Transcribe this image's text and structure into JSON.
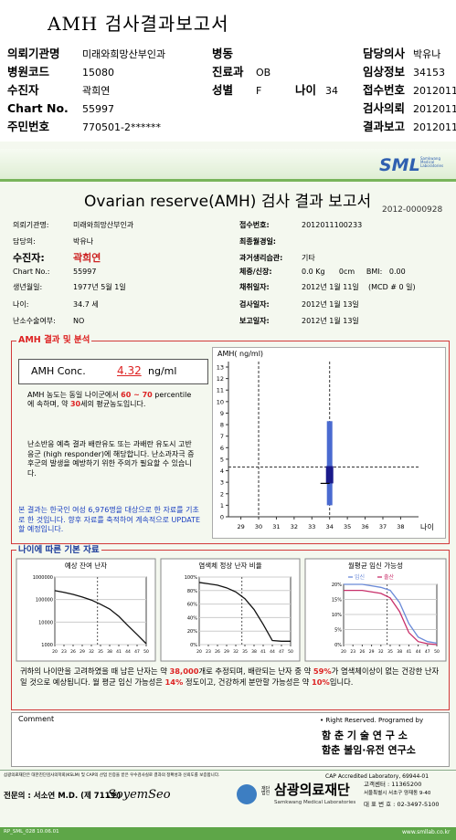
{
  "header": {
    "title": "AMH 검사결과보고서",
    "fields": [
      {
        "label": "의뢰기관명",
        "value": "미래와희망산부인과"
      },
      {
        "label": "병동"
      },
      {
        "label": "담당의사",
        "value": "박유나"
      },
      {
        "label": "병원코드",
        "value": 15080
      },
      {
        "label": "진료과",
        "value": "OB"
      },
      {
        "label": "임상정보",
        "value": 34153
      },
      {
        "label": "수진자",
        "value": "곽희연"
      },
      {
        "label": "성별",
        "value": "F"
      },
      {
        "label": "나이",
        "value": 34
      },
      {
        "label": "접수번호",
        "value": "2012011"
      },
      {
        "label": "Chart No.",
        "value": 55997
      },
      {
        "label": "검사의뢰",
        "value": "2012011"
      },
      {
        "label": "주민번호",
        "value": "770501-2******"
      },
      {
        "label": "결과보고",
        "value": "2012011"
      }
    ]
  },
  "report": {
    "logo": "SML",
    "logo_sub": "Samkwang Medical Laboratories",
    "title": "Ovarian reserve(AMH) 검사 결과 보고서",
    "number": "2012-0000928",
    "info_left": [
      {
        "label": "의뢰기관명:",
        "value": "미래와희망산부인과"
      },
      {
        "label": "담당의:",
        "value": "박유나"
      },
      {
        "label": "수진자:",
        "value": "곽희연"
      },
      {
        "label": "Chart No.:",
        "value": 55997
      },
      {
        "label": "생년월일:",
        "value": "1977년 5월 1일"
      },
      {
        "label": "나이:",
        "value": "34.7 세"
      },
      {
        "label": "난소수술여부:",
        "value": "NO"
      }
    ],
    "info_right": [
      {
        "label": "접수번호:",
        "value": "2012011100233"
      },
      {
        "label": "최종월경일:"
      },
      {
        "label": "과거생리습관:",
        "value": "기타"
      },
      {
        "label": "체중/신장:",
        "value": "0.0 Kg      0cm     BMI:   0.00"
      },
      {
        "label": "채취일자:",
        "value": "2012년 1월 11일    (MCD # 0 일)"
      },
      {
        "label": "검사일자:",
        "value": "2012년 1월 13일"
      },
      {
        "label": "보고일자:",
        "value": "2012년 1월 13일"
      }
    ]
  },
  "analysis": {
    "title": "AMH 결과 및 분석",
    "conc_label": "AMH Conc.",
    "conc_value": 4.32,
    "conc_unit": "ng/ml",
    "p1": [
      "AMH 농도는 동일 나이군에서 ",
      "60 ~ 70",
      " percentile에 속하며, 약 ",
      30,
      "세의 평균농도입니다."
    ],
    "p2": "난소반응 예측 결과 배란유도 또는 과배란 유도시 고반응군 (high responder)에 해당합니다. 난소과자극 증후군의 발생을 예방하기 위한 주의가 필요할 수 있습니다.",
    "p3": "본 결과는 한국인 여성 6,976명을 대상으로 한 자료를 기초로 한 것입니다. 향후 자료를 축적하여 계속적으로 UPDATE할 예정입니다."
  },
  "amh_chart": {
    "y_label": "AMH( ng/ml)",
    "x_label": "나이",
    "ylim": [
      0,
      13
    ],
    "yticks": [
      0,
      1,
      2,
      3,
      4,
      5,
      6,
      7,
      8,
      9,
      10,
      11,
      12,
      13
    ],
    "xlim": [
      28.3,
      38.7
    ],
    "xticks": [
      29,
      30,
      31,
      32,
      33,
      34,
      35,
      36,
      37,
      38
    ],
    "range": [
      1.0,
      8.3
    ],
    "box": [
      2.9,
      4.4
    ]
  },
  "basic": {
    "title": "나이에 따른 기본 자료",
    "x": [
      20,
      23,
      26,
      29,
      32,
      35,
      38,
      41,
      44,
      47,
      50
    ],
    "charts": [
      {
        "title": "예상 잔여 난자",
        "log_scale": true,
        "ylim": [
          1000,
          1000000
        ],
        "yticks": [
          1000,
          10000,
          100000,
          1000000
        ],
        "series": [
          {
            "color": "#111111",
            "values": [
              250000,
              210000,
              170000,
              130000,
              95000,
              62000,
              38000,
              18000,
              7000,
              2800,
              1100
            ]
          }
        ]
      },
      {
        "title": "염색체 정상 난자 비율",
        "ylim": [
          0,
          100
        ],
        "yticks": [
          {
            "value": 0,
            "label": "0%"
          },
          {
            "value": 20,
            "label": "20%"
          },
          {
            "value": 40,
            "label": "40%"
          },
          {
            "value": 60,
            "label": "60%"
          },
          {
            "value": 80,
            "label": "80%"
          },
          {
            "value": 100,
            "label": "100%"
          }
        ],
        "series": [
          {
            "color": "#111111",
            "values": [
              92,
              90,
              88,
              84,
              78,
              68,
              52,
              30,
              6,
              5,
              5
            ]
          }
        ]
      },
      {
        "title": "월평균 임신 가능성",
        "ylim": [
          0,
          20
        ],
        "yticks": [
          {
            "value": 0,
            "label": "0%"
          },
          {
            "value": 5,
            "label": "5%"
          },
          {
            "value": 10,
            "label": "10%"
          },
          {
            "value": 15,
            "label": "15%"
          },
          {
            "value": 20,
            "label": "20%"
          }
        ],
        "series": [
          {
            "name": "임신",
            "color": "#6a8ad8",
            "values": [
              20,
              20,
              20,
              19.5,
              19,
              18,
              14,
              7,
              2.5,
              1,
              0.5
            ]
          },
          {
            "name": "출산",
            "color": "#c8306a",
            "values": [
              18,
              18,
              18,
              17.5,
              17,
              15.5,
              11,
              4,
              1,
              0.3,
              0
            ]
          }
        ]
      }
    ],
    "summary": [
      "귀하의 나이만을 고려하였을 때 남은 난자는 약 ",
      "38,000",
      "개로 추정되며, 배란되는 난자 중 약 ",
      "59%",
      "가 염색체이상이 없는 건강한 난자일 것으로 예상됩니다. 월 평균 임신 가능성은 ",
      "14%",
      " 정도이고, 건강하게 분만할 가능성은 약 ",
      "10%",
      "입니다."
    ]
  },
  "comment": {
    "title": "Comment",
    "credit": "• Right Reserved. Programed by",
    "lab1": "함 춘  기 술  연 구 소",
    "lab2": "함춘 불임·유전 연구소"
  },
  "footer": {
    "notice": "삼광의료재단은 대한진단검사의학회(KSLM) 및 CAP의 산업 인증을 받은 우수검사실로 결과의 정확성과 신뢰도를 보증합니다.",
    "cap": "CAP  Accredited  Laboratory,  69944-01",
    "doctor": "전문의 : 서소연 M.D. (제 711호)",
    "signature": "SoyemSeo",
    "org_small": "재단법인",
    "org": "삼광의료재단",
    "org_en": "Samkwang Medical Laboratories",
    "contact1": "고객센터 : 11365200",
    "address": "서울특별시 서초구 양재동 9-40",
    "contact2": "대 표 번 호 : 02-3497-5100",
    "code": "RP_SML_028  10.06.01",
    "url": "www.smllab.co.kr"
  }
}
